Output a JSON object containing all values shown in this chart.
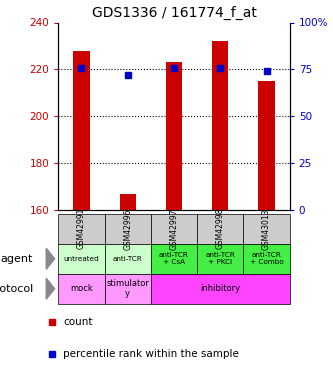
{
  "title": "GDS1336 / 161774_f_at",
  "samples": [
    "GSM42991",
    "GSM42996",
    "GSM42997",
    "GSM42998",
    "GSM43013"
  ],
  "counts": [
    228,
    167,
    223,
    232,
    215
  ],
  "percentile_ranks": [
    76,
    72,
    76,
    76,
    74
  ],
  "ylim_left": [
    160,
    240
  ],
  "ylim_right": [
    0,
    100
  ],
  "yticks_left": [
    160,
    180,
    200,
    220,
    240
  ],
  "yticks_right": [
    0,
    25,
    50,
    75,
    100
  ],
  "bar_color": "#cc0000",
  "dot_color": "#0000cc",
  "agent_labels": [
    "untreated",
    "anti-TCR",
    "anti-TCR\n+ CsA",
    "anti-TCR\n+ PKCi",
    "anti-TCR\n+ Combo"
  ],
  "agent_colors_light": [
    "#ccffcc",
    "#ccffcc"
  ],
  "agent_colors_dark": [
    "#44ee44",
    "#44ee44",
    "#44ee44"
  ],
  "sample_bg_color": "#cccccc",
  "mock_color": "#ff99ff",
  "stimulatory_color": "#ff99ff",
  "inhibitory_color": "#ff44ff",
  "title_fontsize": 10,
  "legend_count_color": "#cc0000",
  "legend_pct_color": "#0000cc"
}
